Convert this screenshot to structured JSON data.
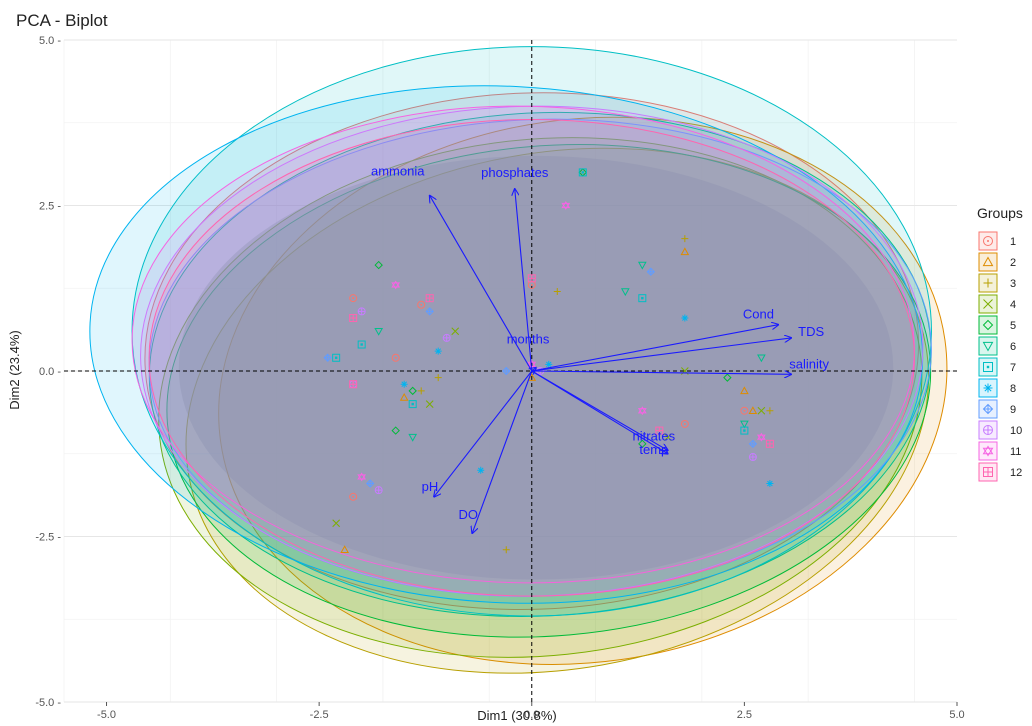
{
  "chart_data": {
    "type": "scatter",
    "title": "PCA - Biplot",
    "xlabel": "Dim1 (30.8%)",
    "ylabel": "Dim2 (23.4%)",
    "xlim": [
      -5.5,
      5.0
    ],
    "ylim": [
      -5.0,
      5.0
    ],
    "x_ticks": [
      -5.0,
      -2.5,
      0.0,
      2.5,
      5.0
    ],
    "y_ticks": [
      -5.0,
      -2.5,
      0.0,
      2.5,
      5.0
    ],
    "x_tick_labels": [
      "-5.0",
      "-2.5",
      "0.0",
      "2.5",
      "5.0"
    ],
    "y_tick_labels": [
      "-5.0 -",
      "-2.5 -",
      "0.0 -",
      "2.5 -",
      "5.0 -"
    ],
    "grid": true,
    "legend_title": "Groups",
    "legend_position": "right",
    "groups": [
      {
        "name": "1",
        "color": "#f8766d",
        "symbol": "circle-dot",
        "ellipse": {
          "cx": 0.0,
          "cy": 0.3,
          "rx": 4.55,
          "ry": 3.9,
          "angle": 2
        }
      },
      {
        "name": "2",
        "color": "#de8c00",
        "symbol": "triangle-dot",
        "ellipse": {
          "cx": 0.6,
          "cy": -0.3,
          "rx": 4.3,
          "ry": 4.1,
          "angle": 8
        }
      },
      {
        "name": "3",
        "color": "#b79f00",
        "symbol": "plus",
        "ellipse": {
          "cx": 0.3,
          "cy": -0.6,
          "rx": 4.4,
          "ry": 3.9,
          "angle": 10
        }
      },
      {
        "name": "4",
        "color": "#7cae00",
        "symbol": "cross",
        "ellipse": {
          "cx": 0.1,
          "cy": -0.4,
          "rx": 4.5,
          "ry": 3.9,
          "angle": 6
        }
      },
      {
        "name": "5",
        "color": "#00ba38",
        "symbol": "diamond-dot",
        "ellipse": {
          "cx": 0.2,
          "cy": -0.3,
          "rx": 4.5,
          "ry": 3.7,
          "angle": 5
        }
      },
      {
        "name": "6",
        "color": "#00c08b",
        "symbol": "triangle-down",
        "ellipse": {
          "cx": 0.1,
          "cy": 0.1,
          "rx": 4.6,
          "ry": 3.8,
          "angle": 3
        }
      },
      {
        "name": "7",
        "color": "#00bfc4",
        "symbol": "square-dot",
        "ellipse": {
          "cx": 0.0,
          "cy": 0.6,
          "rx": 4.7,
          "ry": 4.3,
          "angle": 0
        }
      },
      {
        "name": "8",
        "color": "#00b4f0",
        "symbol": "asterisk",
        "ellipse": {
          "cx": -0.3,
          "cy": 0.4,
          "rx": 4.9,
          "ry": 3.9,
          "angle": -3
        }
      },
      {
        "name": "9",
        "color": "#619cff",
        "symbol": "diamond-plus",
        "ellipse": {
          "cx": 0.1,
          "cy": 0.2,
          "rx": 4.6,
          "ry": 3.6,
          "angle": 2
        }
      },
      {
        "name": "10",
        "color": "#c77cff",
        "symbol": "circle-plus",
        "ellipse": {
          "cx": 0.0,
          "cy": 0.3,
          "rx": 4.6,
          "ry": 3.7,
          "angle": 1
        }
      },
      {
        "name": "11",
        "color": "#f564e3",
        "symbol": "star-of-david",
        "ellipse": {
          "cx": -0.1,
          "cy": 0.4,
          "rx": 4.6,
          "ry": 3.6,
          "angle": -1
        }
      },
      {
        "name": "12",
        "color": "#ff64b0",
        "symbol": "square-plus",
        "ellipse": {
          "cx": 0.0,
          "cy": 0.2,
          "rx": 4.5,
          "ry": 3.6,
          "angle": 0
        }
      }
    ],
    "variables": [
      {
        "name": "ammonia",
        "x": -1.2,
        "y": 2.65
      },
      {
        "name": "phosphates",
        "x": -0.2,
        "y": 2.75
      },
      {
        "name": "Cond",
        "x": 2.9,
        "y": 0.7
      },
      {
        "name": "TDS",
        "x": 3.05,
        "y": 0.5
      },
      {
        "name": "salinity",
        "x": 3.05,
        "y": -0.05
      },
      {
        "name": "months",
        "x": 0.05,
        "y": 0.05
      },
      {
        "name": "nitrates",
        "x": 1.6,
        "y": -1.2
      },
      {
        "name": "temp",
        "x": 1.6,
        "y": -1.25
      },
      {
        "name": "pH",
        "x": -1.15,
        "y": -1.9
      },
      {
        "name": "DO",
        "x": -0.7,
        "y": -2.45
      }
    ],
    "individuals": [
      {
        "g": 1,
        "x": -2.1,
        "y": 1.1
      },
      {
        "g": 1,
        "x": -1.6,
        "y": 0.2
      },
      {
        "g": 1,
        "x": -2.1,
        "y": -1.9
      },
      {
        "g": 1,
        "x": 2.5,
        "y": -0.6
      },
      {
        "g": 1,
        "x": 1.8,
        "y": -0.8
      },
      {
        "g": 1,
        "x": 0.0,
        "y": 1.3
      },
      {
        "g": 1,
        "x": -1.3,
        "y": 1.0
      },
      {
        "g": 2,
        "x": 1.8,
        "y": 1.8
      },
      {
        "g": 2,
        "x": -2.2,
        "y": -2.7
      },
      {
        "g": 2,
        "x": 2.5,
        "y": -0.3
      },
      {
        "g": 2,
        "x": 0.0,
        "y": -0.1
      },
      {
        "g": 2,
        "x": -1.5,
        "y": -0.4
      },
      {
        "g": 2,
        "x": 2.6,
        "y": -0.6
      },
      {
        "g": 3,
        "x": 1.8,
        "y": 2.0
      },
      {
        "g": 3,
        "x": -1.3,
        "y": -0.3
      },
      {
        "g": 3,
        "x": 0.3,
        "y": 1.2
      },
      {
        "g": 3,
        "x": -1.1,
        "y": -0.1
      },
      {
        "g": 3,
        "x": 2.8,
        "y": -0.6
      },
      {
        "g": 3,
        "x": -0.3,
        "y": -2.7
      },
      {
        "g": 4,
        "x": -2.3,
        "y": -2.3
      },
      {
        "g": 4,
        "x": 2.7,
        "y": -0.6
      },
      {
        "g": 4,
        "x": -1.2,
        "y": -0.5
      },
      {
        "g": 4,
        "x": 1.6,
        "y": -1.0
      },
      {
        "g": 4,
        "x": -0.9,
        "y": 0.6
      },
      {
        "g": 4,
        "x": 1.8,
        "y": 0.0
      },
      {
        "g": 5,
        "x": -1.8,
        "y": 1.6
      },
      {
        "g": 5,
        "x": -1.6,
        "y": -0.9
      },
      {
        "g": 5,
        "x": 2.3,
        "y": -0.1
      },
      {
        "g": 5,
        "x": -1.4,
        "y": -0.3
      },
      {
        "g": 5,
        "x": 1.3,
        "y": -1.1
      },
      {
        "g": 5,
        "x": 0.6,
        "y": 3.0
      },
      {
        "g": 6,
        "x": 1.3,
        "y": 1.6
      },
      {
        "g": 6,
        "x": 1.1,
        "y": 1.2
      },
      {
        "g": 6,
        "x": 2.7,
        "y": 0.2
      },
      {
        "g": 6,
        "x": -1.4,
        "y": -1.0
      },
      {
        "g": 6,
        "x": 2.5,
        "y": -0.8
      },
      {
        "g": 6,
        "x": -1.8,
        "y": 0.6
      },
      {
        "g": 7,
        "x": 0.6,
        "y": 3.0
      },
      {
        "g": 7,
        "x": -2.3,
        "y": 0.2
      },
      {
        "g": 7,
        "x": 1.3,
        "y": 1.1
      },
      {
        "g": 7,
        "x": -1.4,
        "y": -0.5
      },
      {
        "g": 7,
        "x": 2.5,
        "y": -0.9
      },
      {
        "g": 7,
        "x": -2.0,
        "y": 0.4
      },
      {
        "g": 8,
        "x": -1.1,
        "y": 0.3
      },
      {
        "g": 8,
        "x": 1.8,
        "y": 0.8
      },
      {
        "g": 8,
        "x": -0.6,
        "y": -1.5
      },
      {
        "g": 8,
        "x": 0.2,
        "y": 0.1
      },
      {
        "g": 8,
        "x": 2.8,
        "y": -1.7
      },
      {
        "g": 8,
        "x": -1.5,
        "y": -0.2
      },
      {
        "g": 9,
        "x": -0.3,
        "y": 0.0
      },
      {
        "g": 9,
        "x": -1.9,
        "y": -1.7
      },
      {
        "g": 9,
        "x": -1.2,
        "y": 0.9
      },
      {
        "g": 9,
        "x": 1.4,
        "y": 1.5
      },
      {
        "g": 9,
        "x": -2.4,
        "y": 0.2
      },
      {
        "g": 9,
        "x": 2.6,
        "y": -1.1
      },
      {
        "g": 10,
        "x": -2.0,
        "y": 0.9
      },
      {
        "g": 10,
        "x": -2.1,
        "y": -0.2
      },
      {
        "g": 10,
        "x": -1.8,
        "y": -1.8
      },
      {
        "g": 10,
        "x": 0.1,
        "y": 0.0
      },
      {
        "g": 10,
        "x": 2.6,
        "y": -1.3
      },
      {
        "g": 10,
        "x": -1.0,
        "y": 0.5
      },
      {
        "g": 11,
        "x": 0.4,
        "y": 2.5
      },
      {
        "g": 11,
        "x": -1.6,
        "y": 1.3
      },
      {
        "g": 11,
        "x": 2.7,
        "y": -1.0
      },
      {
        "g": 11,
        "x": 1.3,
        "y": -0.6
      },
      {
        "g": 11,
        "x": -2.0,
        "y": -1.6
      },
      {
        "g": 11,
        "x": 0.0,
        "y": 0.1
      },
      {
        "g": 12,
        "x": -2.1,
        "y": 0.8
      },
      {
        "g": 12,
        "x": 0.0,
        "y": 1.4
      },
      {
        "g": 12,
        "x": 2.8,
        "y": -1.1
      },
      {
        "g": 12,
        "x": -2.1,
        "y": -0.2
      },
      {
        "g": 12,
        "x": 1.5,
        "y": -0.9
      },
      {
        "g": 12,
        "x": -1.2,
        "y": 1.1
      }
    ]
  }
}
